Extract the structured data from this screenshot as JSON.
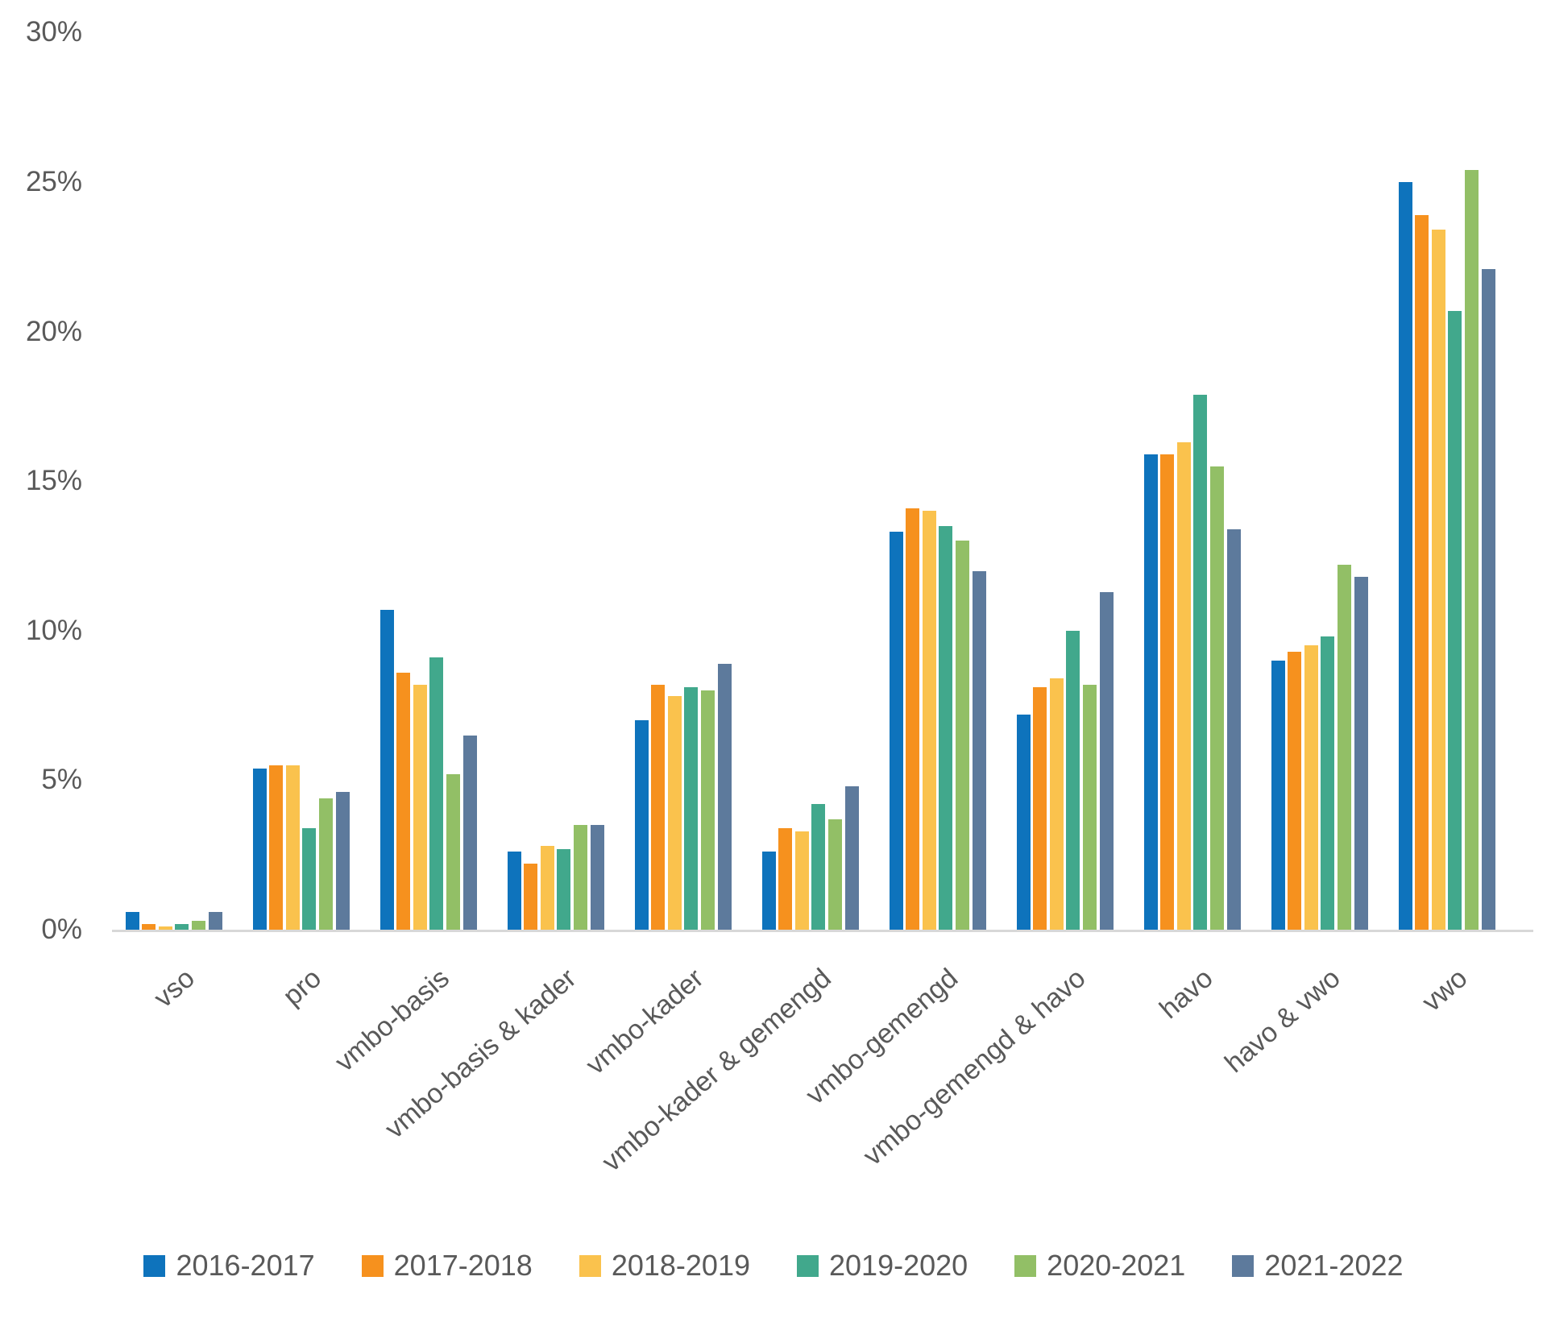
{
  "chart_data": {
    "type": "bar",
    "title": "",
    "xlabel": "",
    "ylabel": "",
    "ylim": [
      0,
      30
    ],
    "ytick_values": [
      0,
      5,
      10,
      15,
      20,
      25,
      30
    ],
    "ytick_labels": [
      "0%",
      "5%",
      "10%",
      "15%",
      "20%",
      "25%",
      "30%"
    ],
    "grid": false,
    "legend_position": "bottom",
    "categories": [
      "vso",
      "pro",
      "vmbo-basis",
      "vmbo-basis & kader",
      "vmbo-kader",
      "vmbo-kader & gemengd",
      "vmbo-gemengd",
      "vmbo-gemengd & havo",
      "havo",
      "havo & vwo",
      "vwo"
    ],
    "series": [
      {
        "name": "2016-2017",
        "color": "#0e73bc",
        "values": [
          0.6,
          5.4,
          10.7,
          2.6,
          7.0,
          2.6,
          13.3,
          7.2,
          15.9,
          9.0,
          25.0
        ]
      },
      {
        "name": "2017-2018",
        "color": "#f6911e",
        "values": [
          0.2,
          5.5,
          8.6,
          2.2,
          8.2,
          3.4,
          14.1,
          8.1,
          15.9,
          9.3,
          23.9
        ]
      },
      {
        "name": "2018-2019",
        "color": "#fac24d",
        "values": [
          0.1,
          5.5,
          8.2,
          2.8,
          7.8,
          3.3,
          14.0,
          8.4,
          16.3,
          9.5,
          23.4
        ]
      },
      {
        "name": "2019-2020",
        "color": "#41a88c",
        "values": [
          0.2,
          3.4,
          9.1,
          2.7,
          8.1,
          4.2,
          13.5,
          10.0,
          17.9,
          9.8,
          20.7
        ]
      },
      {
        "name": "2020-2021",
        "color": "#92bf66",
        "values": [
          0.3,
          4.4,
          5.2,
          3.5,
          8.0,
          3.7,
          13.0,
          8.2,
          15.5,
          12.2,
          25.4
        ]
      },
      {
        "name": "2021-2022",
        "color": "#5d7a9c",
        "values": [
          0.6,
          4.6,
          6.5,
          3.5,
          8.9,
          4.8,
          12.0,
          11.3,
          13.4,
          11.8,
          22.1
        ]
      }
    ]
  },
  "style_colors": {
    "axis_line": "#d8d8d8",
    "axis_text": "#595959",
    "background": "#ffffff"
  }
}
